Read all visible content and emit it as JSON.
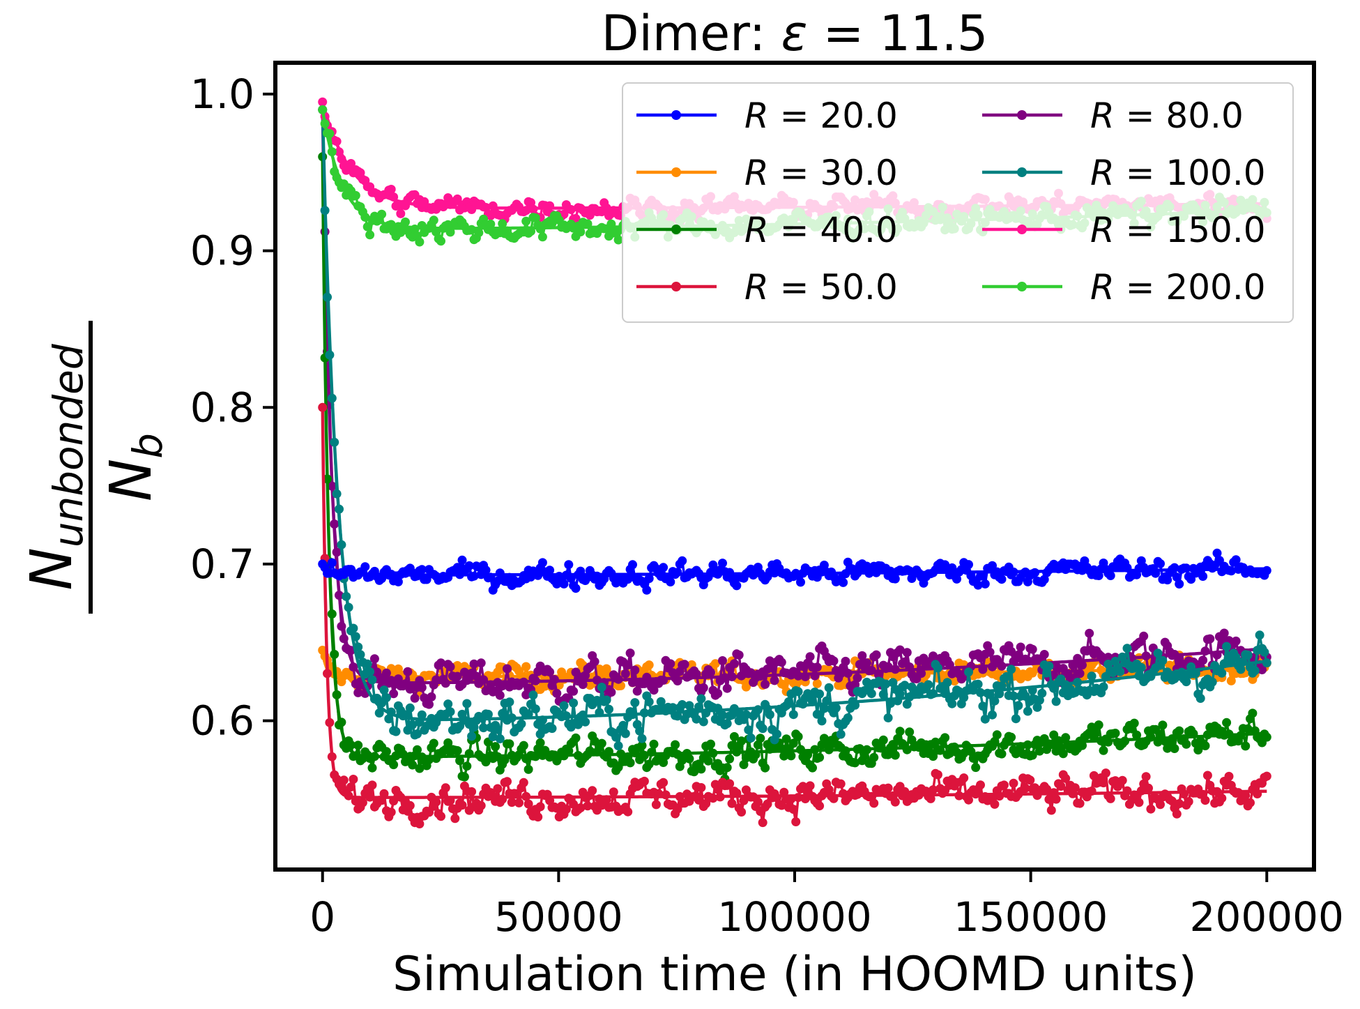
{
  "chart_data": {
    "type": "line",
    "title": "Dimer: ε = 11.5",
    "title_prefix": "Dimer: ",
    "title_symbol": "ε",
    "title_rest": " = 11.5",
    "xlabel": "Simulation time (in HOOMD units)",
    "ylabel_numerator": "N",
    "ylabel_numerator_sub": "unbonded",
    "ylabel_denominator": "N",
    "ylabel_denominator_sub": "b",
    "xlim": [
      -10000,
      210000
    ],
    "ylim": [
      0.505,
      1.02
    ],
    "xticks": [
      0,
      50000,
      100000,
      150000,
      200000
    ],
    "xtick_labels": [
      "0",
      "50000",
      "100000",
      "150000",
      "200000"
    ],
    "yticks": [
      0.6,
      0.7,
      0.8,
      0.9,
      1.0
    ],
    "ytick_labels": [
      "0.6",
      "0.7",
      "0.8",
      "0.9",
      "1.0"
    ],
    "grid": false,
    "legend_position": "top-right",
    "legend_columns": 2,
    "sampling": {
      "x_start": 0,
      "x_end": 200000,
      "n_points": 400
    },
    "series": [
      {
        "name": "R = 20.0",
        "label_var": "R",
        "label_val": " = 20.0",
        "color": "#0000ff",
        "init": 0.7,
        "plateau": 0.693,
        "tau": 600,
        "drift": 0.004,
        "noise": 0.0065,
        "z": 6
      },
      {
        "name": "R = 30.0",
        "label_var": "R",
        "label_val": " = 30.0",
        "color": "#ff8c00",
        "init": 0.645,
        "plateau": 0.628,
        "tau": 800,
        "drift": 0.006,
        "noise": 0.0065,
        "z": 1
      },
      {
        "name": "R = 40.0",
        "label_var": "R",
        "label_val": " = 40.0",
        "color": "#008000",
        "init": 0.96,
        "plateau": 0.577,
        "tau": 1300,
        "drift": 0.015,
        "noise": 0.0095,
        "z": 3
      },
      {
        "name": "R = 50.0",
        "label_var": "R",
        "label_val": " = 50.0",
        "color": "#dc143c",
        "init": 0.8,
        "plateau": 0.551,
        "tau": 900,
        "drift": 0.004,
        "noise": 0.0095,
        "z": 5
      },
      {
        "name": "R = 80.0",
        "label_var": "R",
        "label_val": " = 80.0",
        "color": "#800080",
        "init": 0.99,
        "plateau": 0.624,
        "tau": 1900,
        "drift": 0.022,
        "noise": 0.011,
        "z": 2
      },
      {
        "name": "R = 100.0",
        "label_var": "R",
        "label_val": " = 100.0",
        "color": "#008080",
        "init": 0.99,
        "plateau": 0.6,
        "tau": 3200,
        "drift": 0.038,
        "noise": 0.013,
        "z": 4
      },
      {
        "name": "R = 150.0",
        "label_var": "R",
        "label_val": " = 150.0",
        "color": "#ff1493",
        "init": 0.995,
        "plateau": 0.927,
        "tau": 6000,
        "drift": 0.003,
        "noise": 0.006,
        "z": 7
      },
      {
        "name": "R = 200.0",
        "label_var": "R",
        "label_val": " = 200.0",
        "color": "#32cd32",
        "init": 0.99,
        "plateau": 0.914,
        "tau": 4200,
        "drift": 0.012,
        "noise": 0.007,
        "z": 8
      }
    ]
  }
}
